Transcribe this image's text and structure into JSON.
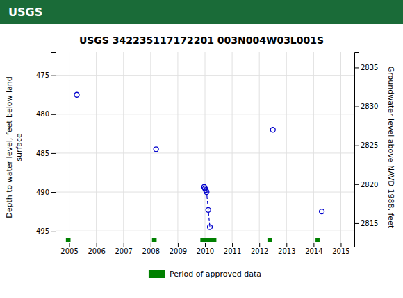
{
  "chart_data": {
    "type": "scatter",
    "title": "USGS 342235117172201 003N004W03L001S",
    "annotations": [
      {
        "text": "USGS",
        "color": "#1a6b38"
      }
    ],
    "ylabel": "Depth to water level, feet below land\nsurface",
    "y2label": "Groundwater level above NAVD 1988, feet",
    "xlim": [
      2004.5,
      2015.5
    ],
    "ylim": [
      496.5,
      472.0
    ],
    "y2lim": [
      2812.5,
      2837.0
    ],
    "xticks": [
      2005,
      2006,
      2007,
      2008,
      2009,
      2010,
      2011,
      2012,
      2013,
      2014,
      2015
    ],
    "yticks": [
      475,
      480,
      485,
      490,
      495
    ],
    "y2ticks": [
      2815,
      2820,
      2825,
      2830,
      2835
    ],
    "grid": true,
    "legend": "bottom",
    "series": [
      {
        "type": "scatter",
        "marker": "circle",
        "color": "#0000cc",
        "x": [
          2005.28,
          2008.2,
          2009.97,
          2010.0,
          2010.03,
          2010.06,
          2010.12,
          2010.18,
          2012.5,
          2014.3
        ],
        "values": [
          477.5,
          484.5,
          489.35,
          489.55,
          489.75,
          490.0,
          492.3,
          494.5,
          482.0,
          492.5
        ]
      },
      {
        "type": "line",
        "line_style": "dashed",
        "color": "#0000cc",
        "x": [
          2010.03,
          2010.06,
          2010.12,
          2010.18
        ],
        "values": [
          489.75,
          490.0,
          492.3,
          494.5
        ]
      },
      {
        "type": "span",
        "name": "Period of approved data",
        "color": "#008000",
        "x_start": [
          2004.88,
          2008.05,
          2009.83,
          2012.3,
          2014.07
        ],
        "x_end": [
          2005.05,
          2008.22,
          2010.42,
          2012.46,
          2014.22
        ]
      }
    ]
  }
}
